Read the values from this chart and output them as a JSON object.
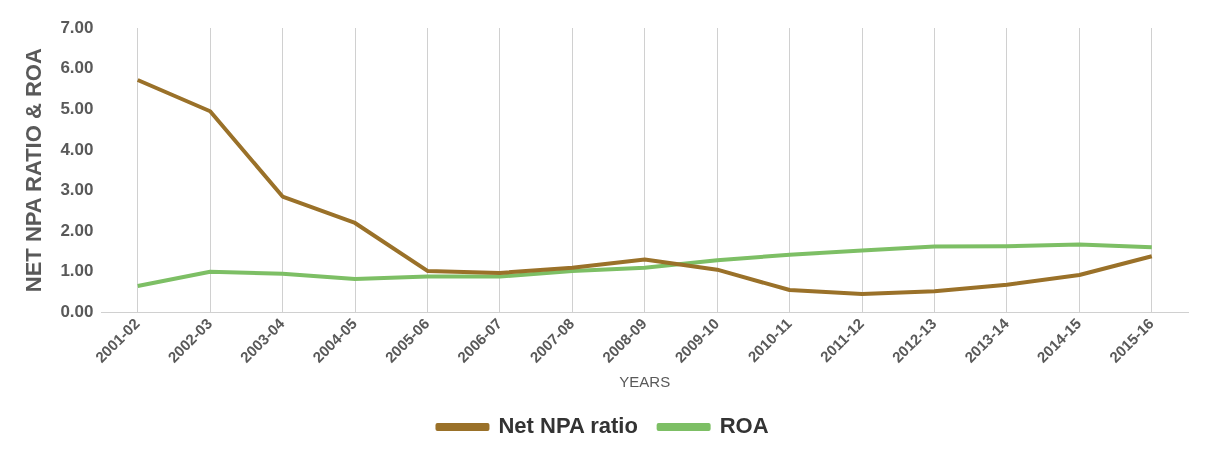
{
  "chart_data": {
    "type": "line",
    "xlabel": "YEARS",
    "ylabel": "NET NPA RATIO & ROA",
    "categories": [
      "2001-02",
      "2002-03",
      "2003-04",
      "2004-05",
      "2005-06",
      "2006-07",
      "2007-08",
      "2008-09",
      "2009-10",
      "2010-11",
      "2011-12",
      "2012-13",
      "2013-14",
      "2014-15",
      "2015-16"
    ],
    "series": [
      {
        "name": "Net NPA ratio",
        "color": "#9a7129",
        "values": [
          5.72,
          4.95,
          2.85,
          2.2,
          1.02,
          0.97,
          1.1,
          1.3,
          1.05,
          0.55,
          0.45,
          0.52,
          0.68,
          0.92,
          1.38
        ]
      },
      {
        "name": "ROA",
        "color": "#7dbf65",
        "values": [
          0.65,
          1.0,
          0.95,
          0.82,
          0.88,
          0.88,
          1.02,
          1.1,
          1.28,
          1.42,
          1.52,
          1.62,
          1.63,
          1.67,
          1.6
        ]
      }
    ],
    "ylim": [
      0,
      7
    ],
    "yticks": [
      {
        "value": 0,
        "label": "0.00"
      },
      {
        "value": 1,
        "label": "1.00"
      },
      {
        "value": 2,
        "label": "2.00"
      },
      {
        "value": 3,
        "label": "3.00"
      },
      {
        "value": 4,
        "label": "4.00"
      },
      {
        "value": 5,
        "label": "5.00"
      },
      {
        "value": 6,
        "label": "6.00"
      },
      {
        "value": 7,
        "label": "7.00"
      }
    ],
    "grid": "x",
    "legend": "bottom",
    "marker": "none",
    "line_style": "solid"
  }
}
